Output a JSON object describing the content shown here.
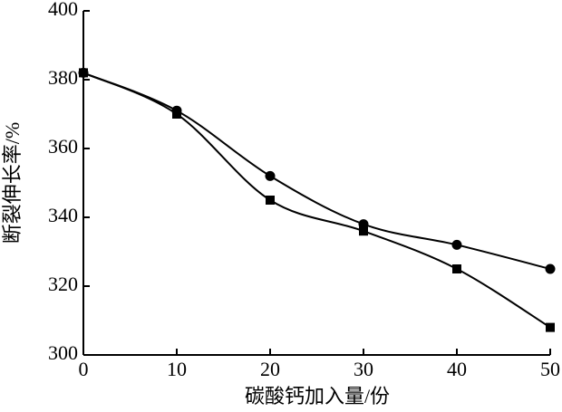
{
  "chart_data": {
    "type": "line",
    "xlabel": "碳酸钙加入量/份",
    "ylabel": "断裂伸长率/%",
    "x": [
      0,
      10,
      20,
      30,
      40,
      50
    ],
    "series": [
      {
        "color": "#000000",
        "marker": "circle",
        "values": [
          382,
          371,
          352,
          338,
          332,
          325
        ]
      },
      {
        "color": "#000000",
        "marker": "square",
        "values": [
          382,
          370,
          345,
          336,
          325,
          308
        ]
      }
    ],
    "xlim": [
      0,
      50
    ],
    "xticks": [
      0,
      10,
      20,
      30,
      40,
      50
    ],
    "ylim": [
      300,
      400
    ],
    "yticks": [
      300,
      320,
      340,
      360,
      380,
      400
    ],
    "smooth": true
  }
}
